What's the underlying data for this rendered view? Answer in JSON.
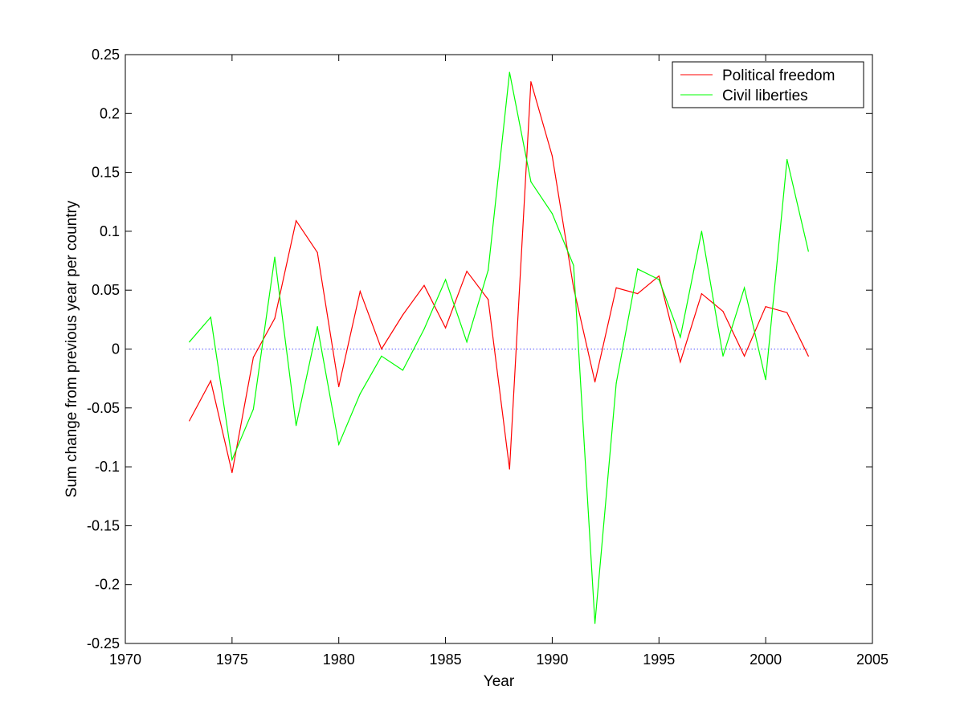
{
  "chart_data": {
    "type": "line",
    "title": "",
    "xlabel": "Year",
    "ylabel": "Sum change from previous year per country",
    "xlim": [
      1970,
      2005
    ],
    "ylim": [
      -0.25,
      0.25
    ],
    "xticks": [
      1970,
      1975,
      1980,
      1985,
      1990,
      1995,
      2000,
      2005
    ],
    "yticks": [
      -0.25,
      -0.2,
      -0.15,
      -0.1,
      -0.05,
      0,
      0.05,
      0.1,
      0.15,
      0.2,
      0.25
    ],
    "xtick_labels": [
      "1970",
      "1975",
      "1980",
      "1985",
      "1990",
      "1995",
      "2000",
      "2005"
    ],
    "ytick_labels": [
      "-0.25",
      "-0.2",
      "-0.15",
      "-0.1",
      "-0.05",
      "0",
      "0.05",
      "0.1",
      "0.15",
      "0.2",
      "0.25"
    ],
    "grid": false,
    "legend_position": "top-right",
    "zero_line": {
      "y": 0,
      "x_range": [
        1973,
        2002
      ],
      "style": "dotted",
      "color": "#0000ff"
    },
    "x": [
      1973,
      1974,
      1975,
      1976,
      1977,
      1978,
      1979,
      1980,
      1981,
      1982,
      1983,
      1984,
      1985,
      1986,
      1987,
      1988,
      1989,
      1990,
      1991,
      1992,
      1993,
      1994,
      1995,
      1996,
      1997,
      1998,
      1999,
      2000,
      2001,
      2002
    ],
    "series": [
      {
        "name": "Political freedom",
        "color": "#ff0000",
        "values": [
          -0.061,
          -0.027,
          -0.105,
          -0.007,
          0.026,
          0.109,
          0.082,
          -0.032,
          0.049,
          0.0,
          0.029,
          0.054,
          0.018,
          0.066,
          0.042,
          -0.102,
          0.227,
          0.164,
          0.052,
          -0.028,
          0.052,
          0.047,
          0.062,
          -0.011,
          0.047,
          0.032,
          -0.006,
          0.036,
          0.031,
          -0.006
        ]
      },
      {
        "name": "Civil liberties",
        "color": "#00ff00",
        "values": [
          0.006,
          0.027,
          -0.094,
          -0.051,
          0.078,
          -0.065,
          0.019,
          -0.081,
          -0.038,
          -0.006,
          -0.018,
          0.017,
          0.059,
          0.006,
          0.067,
          0.235,
          0.142,
          0.115,
          0.071,
          -0.233,
          -0.029,
          0.068,
          0.059,
          0.01,
          0.1,
          -0.006,
          0.052,
          -0.026,
          0.161,
          0.083
        ]
      }
    ]
  }
}
